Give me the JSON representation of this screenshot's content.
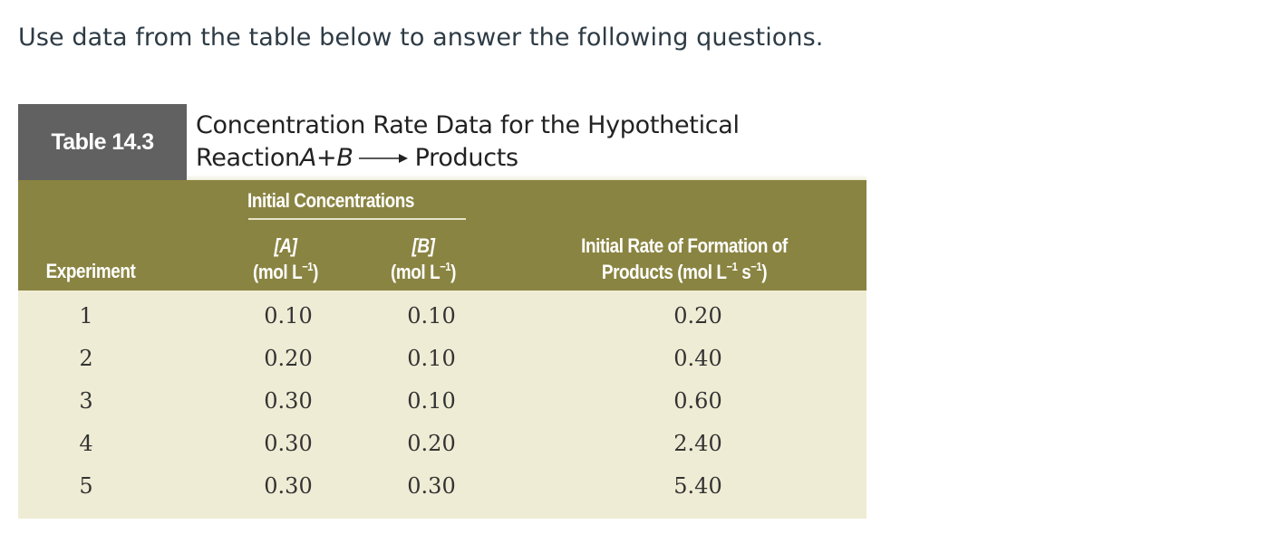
{
  "question": "Use data from the table below to answer the following questions.",
  "table": {
    "tag": "Table 14.3",
    "caption_line1": "Concentration Rate Data for the Hypothetical",
    "caption_reaction_prefix": "Reaction ",
    "caption_A": "A",
    "caption_plus": " + ",
    "caption_B": "B",
    "caption_products": "Products",
    "group_header": "Initial Concentrations",
    "headers": {
      "experiment": "Experiment",
      "a_symbol": "[A]",
      "a_unit_prefix": "(mol L",
      "a_unit_exp": "−1",
      "a_unit_suffix": ")",
      "b_symbol": "[B]",
      "b_unit_prefix": "(mol L",
      "b_unit_exp": "−1",
      "b_unit_suffix": ")",
      "rate_line1": "Initial Rate of Formation of",
      "rate_line2_prefix": "Products (mol L",
      "rate_exp1": "−1",
      "rate_mid": " s",
      "rate_exp2": "−1",
      "rate_suffix": ")"
    },
    "rows": [
      {
        "experiment": "1",
        "a": "0.10",
        "b": "0.10",
        "rate": "0.20"
      },
      {
        "experiment": "2",
        "a": "0.20",
        "b": "0.10",
        "rate": "0.40"
      },
      {
        "experiment": "3",
        "a": "0.30",
        "b": "0.10",
        "rate": "0.60"
      },
      {
        "experiment": "4",
        "a": "0.30",
        "b": "0.20",
        "rate": "2.40"
      },
      {
        "experiment": "5",
        "a": "0.30",
        "b": "0.30",
        "rate": "5.40"
      }
    ]
  },
  "colors": {
    "header_bg": "#8a8442",
    "tag_bg": "#616161",
    "body_bg": "#efecd5",
    "question_text": "#2d3b45"
  }
}
